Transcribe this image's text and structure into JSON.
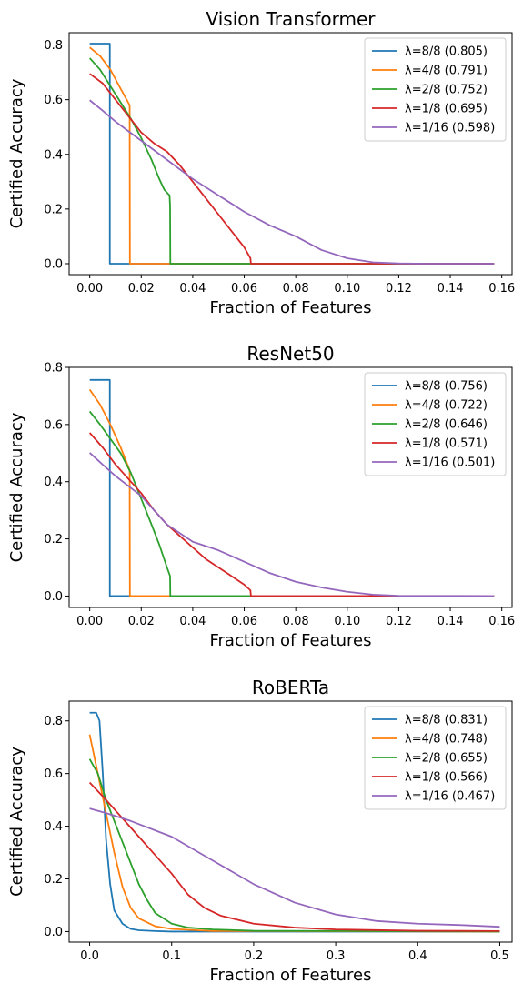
{
  "chart_data": [
    {
      "type": "line",
      "title": "Vision Transformer",
      "xlabel": "Fraction of Features",
      "ylabel": "Certified Accuracy",
      "xlim": [
        -0.008,
        0.164
      ],
      "ylim": [
        -0.04,
        0.845
      ],
      "xticks": [
        0.0,
        0.02,
        0.04,
        0.06,
        0.08,
        0.1,
        0.12,
        0.14,
        0.16
      ],
      "xtick_labels": [
        "0.00",
        "0.02",
        "0.04",
        "0.06",
        "0.08",
        "0.10",
        "0.12",
        "0.14",
        "0.16"
      ],
      "yticks": [
        0.0,
        0.2,
        0.4,
        0.6,
        0.8
      ],
      "ytick_labels": [
        "0.0",
        "0.2",
        "0.4",
        "0.6",
        "0.8"
      ],
      "grid": false,
      "legend_position": "top-right",
      "series": [
        {
          "name": "λ=8/8 (0.805)",
          "color": "#1f77b4",
          "x": [
            0,
            0.0078,
            0.0078,
            0.157
          ],
          "y": [
            0.805,
            0.805,
            0,
            0
          ]
        },
        {
          "name": "λ=4/8 (0.791)",
          "color": "#ff7f0e",
          "x": [
            0,
            0.004,
            0.008,
            0.012,
            0.0155,
            0.0156,
            0.157
          ],
          "y": [
            0.791,
            0.76,
            0.71,
            0.64,
            0.58,
            0,
            0
          ]
        },
        {
          "name": "λ=2/8 (0.752)",
          "color": "#2ca02c",
          "x": [
            0,
            0.004,
            0.008,
            0.012,
            0.016,
            0.02,
            0.024,
            0.027,
            0.029,
            0.031,
            0.0312,
            0.0313,
            0.157
          ],
          "y": [
            0.752,
            0.71,
            0.65,
            0.59,
            0.53,
            0.46,
            0.38,
            0.31,
            0.27,
            0.25,
            0.21,
            0,
            0
          ]
        },
        {
          "name": "λ=1/8 (0.695)",
          "color": "#d62728",
          "x": [
            0,
            0.005,
            0.01,
            0.015,
            0.02,
            0.025,
            0.03,
            0.035,
            0.04,
            0.045,
            0.05,
            0.055,
            0.06,
            0.0624,
            0.0626,
            0.157
          ],
          "y": [
            0.695,
            0.66,
            0.6,
            0.54,
            0.48,
            0.44,
            0.41,
            0.36,
            0.3,
            0.24,
            0.18,
            0.12,
            0.06,
            0.02,
            0,
            0
          ]
        },
        {
          "name": "λ=1/16 (0.598)",
          "color": "#9467bd",
          "x": [
            0,
            0.005,
            0.01,
            0.02,
            0.03,
            0.04,
            0.05,
            0.06,
            0.07,
            0.08,
            0.09,
            0.1,
            0.11,
            0.12,
            0.13,
            0.157
          ],
          "y": [
            0.598,
            0.56,
            0.52,
            0.45,
            0.38,
            0.31,
            0.25,
            0.19,
            0.14,
            0.1,
            0.05,
            0.02,
            0.005,
            0.001,
            0,
            0
          ]
        }
      ]
    },
    {
      "type": "line",
      "title": "ResNet50",
      "xlabel": "Fraction of Features",
      "ylabel": "Certified Accuracy",
      "xlim": [
        -0.008,
        0.164
      ],
      "ylim": [
        -0.04,
        0.8
      ],
      "xticks": [
        0.0,
        0.02,
        0.04,
        0.06,
        0.08,
        0.1,
        0.12,
        0.14,
        0.16
      ],
      "xtick_labels": [
        "0.00",
        "0.02",
        "0.04",
        "0.06",
        "0.08",
        "0.10",
        "0.12",
        "0.14",
        "0.16"
      ],
      "yticks": [
        0.0,
        0.2,
        0.4,
        0.6,
        0.8
      ],
      "ytick_labels": [
        "0.0",
        "0.2",
        "0.4",
        "0.6",
        "0.8"
      ],
      "grid": false,
      "legend_position": "top-right",
      "series": [
        {
          "name": "λ=8/8 (0.756)",
          "color": "#1f77b4",
          "x": [
            0,
            0.0078,
            0.0078,
            0.157
          ],
          "y": [
            0.756,
            0.756,
            0,
            0
          ]
        },
        {
          "name": "λ=4/8 (0.722)",
          "color": "#ff7f0e",
          "x": [
            0,
            0.004,
            0.008,
            0.012,
            0.0155,
            0.0156,
            0.157
          ],
          "y": [
            0.722,
            0.67,
            0.6,
            0.52,
            0.44,
            0,
            0
          ]
        },
        {
          "name": "λ=2/8 (0.646)",
          "color": "#2ca02c",
          "x": [
            0,
            0.004,
            0.008,
            0.012,
            0.016,
            0.02,
            0.024,
            0.027,
            0.03,
            0.0312,
            0.0313,
            0.157
          ],
          "y": [
            0.646,
            0.6,
            0.55,
            0.5,
            0.43,
            0.34,
            0.25,
            0.18,
            0.1,
            0.07,
            0,
            0
          ]
        },
        {
          "name": "λ=1/8 (0.571)",
          "color": "#d62728",
          "x": [
            0,
            0.005,
            0.01,
            0.015,
            0.02,
            0.025,
            0.03,
            0.035,
            0.04,
            0.045,
            0.05,
            0.055,
            0.06,
            0.0624,
            0.0626,
            0.157
          ],
          "y": [
            0.571,
            0.52,
            0.46,
            0.41,
            0.36,
            0.3,
            0.25,
            0.21,
            0.17,
            0.13,
            0.1,
            0.07,
            0.04,
            0.02,
            0,
            0
          ]
        },
        {
          "name": "λ=1/16 (0.501)",
          "color": "#9467bd",
          "x": [
            0,
            0.005,
            0.01,
            0.02,
            0.03,
            0.04,
            0.05,
            0.06,
            0.07,
            0.08,
            0.09,
            0.1,
            0.11,
            0.12,
            0.157
          ],
          "y": [
            0.501,
            0.46,
            0.42,
            0.35,
            0.25,
            0.19,
            0.16,
            0.12,
            0.08,
            0.05,
            0.03,
            0.015,
            0.005,
            0.001,
            0
          ]
        }
      ]
    },
    {
      "type": "line",
      "title": "RoBERTa",
      "xlabel": "Fraction of Features",
      "ylabel": "Certified Accuracy",
      "xlim": [
        -0.025,
        0.515
      ],
      "ylim": [
        -0.04,
        0.875
      ],
      "xticks": [
        0.0,
        0.1,
        0.2,
        0.3,
        0.4,
        0.5
      ],
      "xtick_labels": [
        "0.0",
        "0.1",
        "0.2",
        "0.3",
        "0.4",
        "0.5"
      ],
      "yticks": [
        0.0,
        0.2,
        0.4,
        0.6,
        0.8
      ],
      "ytick_labels": [
        "0.0",
        "0.2",
        "0.4",
        "0.6",
        "0.8"
      ],
      "grid": false,
      "legend_position": "top-right",
      "series": [
        {
          "name": "λ=8/8 (0.831)",
          "color": "#1f77b4",
          "x": [
            0,
            0.008,
            0.012,
            0.016,
            0.02,
            0.025,
            0.03,
            0.04,
            0.05,
            0.06,
            0.08,
            0.1,
            0.5
          ],
          "y": [
            0.831,
            0.831,
            0.8,
            0.6,
            0.35,
            0.18,
            0.08,
            0.03,
            0.01,
            0.005,
            0.002,
            0,
            0
          ]
        },
        {
          "name": "λ=4/8 (0.748)",
          "color": "#ff7f0e",
          "x": [
            0,
            0.01,
            0.02,
            0.03,
            0.04,
            0.05,
            0.06,
            0.08,
            0.1,
            0.15,
            0.5
          ],
          "y": [
            0.748,
            0.6,
            0.45,
            0.3,
            0.17,
            0.09,
            0.05,
            0.02,
            0.01,
            0.002,
            0
          ]
        },
        {
          "name": "λ=2/8 (0.655)",
          "color": "#2ca02c",
          "x": [
            0,
            0.01,
            0.02,
            0.03,
            0.04,
            0.05,
            0.06,
            0.07,
            0.08,
            0.09,
            0.1,
            0.12,
            0.15,
            0.2,
            0.5
          ],
          "y": [
            0.655,
            0.6,
            0.5,
            0.42,
            0.34,
            0.26,
            0.18,
            0.12,
            0.07,
            0.05,
            0.03,
            0.015,
            0.008,
            0.003,
            0
          ]
        },
        {
          "name": "λ=1/8 (0.566)",
          "color": "#d62728",
          "x": [
            0,
            0.02,
            0.04,
            0.06,
            0.08,
            0.1,
            0.12,
            0.14,
            0.16,
            0.2,
            0.25,
            0.3,
            0.4,
            0.5
          ],
          "y": [
            0.566,
            0.5,
            0.43,
            0.36,
            0.29,
            0.22,
            0.14,
            0.09,
            0.06,
            0.03,
            0.015,
            0.008,
            0.003,
            0.002
          ]
        },
        {
          "name": "λ=1/16 (0.467)",
          "color": "#9467bd",
          "x": [
            0,
            0.02,
            0.05,
            0.1,
            0.15,
            0.2,
            0.25,
            0.3,
            0.35,
            0.4,
            0.45,
            0.5
          ],
          "y": [
            0.467,
            0.45,
            0.42,
            0.36,
            0.27,
            0.18,
            0.11,
            0.065,
            0.04,
            0.03,
            0.025,
            0.018
          ]
        }
      ]
    }
  ]
}
